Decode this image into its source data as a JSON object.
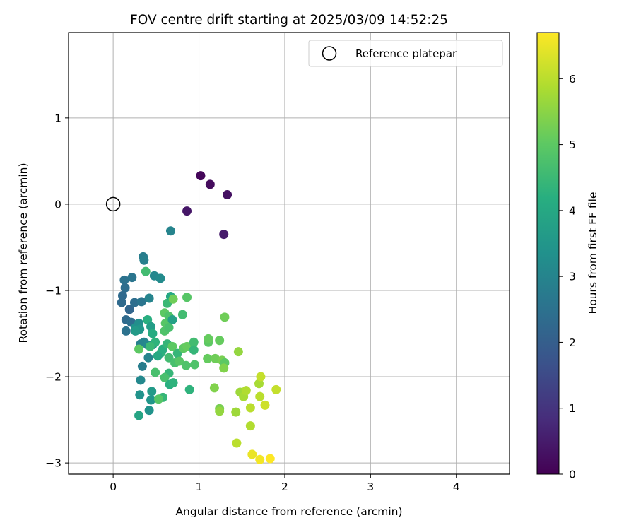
{
  "chart_data": {
    "type": "scatter",
    "title": "FOV centre drift starting at 2025/03/09 14:52:25",
    "xlabel": "Angular distance from reference (arcmin)",
    "ylabel": "Rotation from reference (arcmin)",
    "xlim": [
      -0.52,
      4.62
    ],
    "ylim": [
      -3.13,
      1.99
    ],
    "xticks": [
      0,
      1,
      2,
      3,
      4
    ],
    "yticks": [
      -3,
      -2,
      -1,
      0,
      1
    ],
    "grid": true,
    "legend": {
      "position": "upper-right",
      "entries": [
        "Reference platepar"
      ]
    },
    "reference_point": {
      "label": "Reference platepar",
      "x": 0,
      "y": 0,
      "marker": "open-circle",
      "color": "#000000"
    },
    "colorbar": {
      "label": "Hours from first FF file",
      "min": 0,
      "max": 6.7,
      "ticks": [
        0,
        1,
        2,
        3,
        4,
        5,
        6
      ],
      "colormap": "viridis"
    },
    "series": [
      {
        "values": [
          {
            "x": 1.02,
            "y": 0.33,
            "c": 0.1
          },
          {
            "x": 1.13,
            "y": 0.23,
            "c": 0.2
          },
          {
            "x": 1.33,
            "y": 0.11,
            "c": 0.3
          },
          {
            "x": 0.86,
            "y": -0.08,
            "c": 0.4
          },
          {
            "x": 1.29,
            "y": -0.35,
            "c": 0.5
          },
          {
            "x": 0.67,
            "y": -0.31,
            "c": 3.0
          },
          {
            "x": 0.35,
            "y": -0.61,
            "c": 2.8
          },
          {
            "x": 0.36,
            "y": -0.65,
            "c": 2.9
          },
          {
            "x": 0.13,
            "y": -0.88,
            "c": 2.5
          },
          {
            "x": 0.22,
            "y": -0.85,
            "c": 2.6
          },
          {
            "x": 0.14,
            "y": -0.97,
            "c": 2.4
          },
          {
            "x": 0.11,
            "y": -1.06,
            "c": 2.3
          },
          {
            "x": 0.1,
            "y": -1.14,
            "c": 2.3
          },
          {
            "x": 0.19,
            "y": -1.22,
            "c": 2.2
          },
          {
            "x": 0.25,
            "y": -1.14,
            "c": 2.4
          },
          {
            "x": 0.33,
            "y": -1.13,
            "c": 2.6
          },
          {
            "x": 0.42,
            "y": -1.09,
            "c": 3.0
          },
          {
            "x": 0.48,
            "y": -0.83,
            "c": 3.1
          },
          {
            "x": 0.55,
            "y": -0.86,
            "c": 3.2
          },
          {
            "x": 0.38,
            "y": -0.78,
            "c": 4.6
          },
          {
            "x": 0.15,
            "y": -1.34,
            "c": 2.3
          },
          {
            "x": 0.21,
            "y": -1.37,
            "c": 2.4
          },
          {
            "x": 0.15,
            "y": -1.47,
            "c": 2.5
          },
          {
            "x": 0.26,
            "y": -1.43,
            "c": 3.4
          },
          {
            "x": 0.3,
            "y": -1.38,
            "c": 3.3
          },
          {
            "x": 0.31,
            "y": -1.45,
            "c": 3.5
          },
          {
            "x": 0.26,
            "y": -1.47,
            "c": 3.6
          },
          {
            "x": 0.32,
            "y": -1.62,
            "c": 2.9
          },
          {
            "x": 0.36,
            "y": -1.6,
            "c": 3.0
          },
          {
            "x": 0.4,
            "y": -1.63,
            "c": 3.1
          },
          {
            "x": 0.46,
            "y": -1.63,
            "c": 3.3
          },
          {
            "x": 0.41,
            "y": -1.78,
            "c": 3.0
          },
          {
            "x": 0.34,
            "y": -1.88,
            "c": 2.8
          },
          {
            "x": 0.32,
            "y": -2.04,
            "c": 3.1
          },
          {
            "x": 0.31,
            "y": -2.21,
            "c": 3.4
          },
          {
            "x": 0.45,
            "y": -2.17,
            "c": 3.6
          },
          {
            "x": 0.44,
            "y": -2.27,
            "c": 3.5
          },
          {
            "x": 0.42,
            "y": -2.39,
            "c": 3.4
          },
          {
            "x": 0.3,
            "y": -2.45,
            "c": 3.9
          },
          {
            "x": 0.4,
            "y": -1.34,
            "c": 4.2
          },
          {
            "x": 0.44,
            "y": -1.42,
            "c": 3.7
          },
          {
            "x": 0.46,
            "y": -1.5,
            "c": 4.1
          },
          {
            "x": 0.49,
            "y": -1.6,
            "c": 4.3
          },
          {
            "x": 0.56,
            "y": -1.72,
            "c": 4.3
          },
          {
            "x": 0.52,
            "y": -1.76,
            "c": 4.0
          },
          {
            "x": 0.58,
            "y": -1.68,
            "c": 4.2
          },
          {
            "x": 0.63,
            "y": -1.62,
            "c": 4.4
          },
          {
            "x": 0.6,
            "y": -1.47,
            "c": 4.8
          },
          {
            "x": 0.61,
            "y": -1.38,
            "c": 4.9
          },
          {
            "x": 0.63,
            "y": -1.15,
            "c": 4.5
          },
          {
            "x": 0.67,
            "y": -1.07,
            "c": 4.0
          },
          {
            "x": 0.7,
            "y": -1.1,
            "c": 5.2
          },
          {
            "x": 0.6,
            "y": -1.26,
            "c": 5.0
          },
          {
            "x": 0.65,
            "y": -1.3,
            "c": 4.8
          },
          {
            "x": 0.69,
            "y": -1.34,
            "c": 3.8
          },
          {
            "x": 0.65,
            "y": -1.43,
            "c": 4.7
          },
          {
            "x": 0.81,
            "y": -1.28,
            "c": 4.6
          },
          {
            "x": 0.86,
            "y": -1.08,
            "c": 4.9
          },
          {
            "x": 0.69,
            "y": -1.65,
            "c": 5.0
          },
          {
            "x": 0.75,
            "y": -1.73,
            "c": 4.4
          },
          {
            "x": 0.65,
            "y": -1.78,
            "c": 4.6
          },
          {
            "x": 0.72,
            "y": -1.84,
            "c": 4.7
          },
          {
            "x": 0.77,
            "y": -1.82,
            "c": 4.9
          },
          {
            "x": 0.82,
            "y": -1.67,
            "c": 5.0
          },
          {
            "x": 0.86,
            "y": -1.65,
            "c": 5.1
          },
          {
            "x": 0.85,
            "y": -1.87,
            "c": 4.8
          },
          {
            "x": 0.65,
            "y": -1.96,
            "c": 4.4
          },
          {
            "x": 0.6,
            "y": -2.01,
            "c": 4.7
          },
          {
            "x": 0.66,
            "y": -2.09,
            "c": 4.2
          },
          {
            "x": 0.7,
            "y": -2.07,
            "c": 4.3
          },
          {
            "x": 0.58,
            "y": -2.24,
            "c": 4.4
          },
          {
            "x": 0.53,
            "y": -2.26,
            "c": 4.9
          },
          {
            "x": 0.49,
            "y": -1.95,
            "c": 4.7
          },
          {
            "x": 0.43,
            "y": -1.65,
            "c": 4.5
          },
          {
            "x": 0.3,
            "y": -1.68,
            "c": 5.0
          },
          {
            "x": 0.94,
            "y": -1.6,
            "c": 4.6
          },
          {
            "x": 0.94,
            "y": -1.69,
            "c": 4.4
          },
          {
            "x": 0.95,
            "y": -1.86,
            "c": 4.8
          },
          {
            "x": 0.89,
            "y": -2.15,
            "c": 4.3
          },
          {
            "x": 1.1,
            "y": -1.79,
            "c": 5.1
          },
          {
            "x": 1.11,
            "y": -1.6,
            "c": 5.0
          },
          {
            "x": 1.11,
            "y": -1.56,
            "c": 5.1
          },
          {
            "x": 1.24,
            "y": -1.58,
            "c": 5.1
          },
          {
            "x": 1.19,
            "y": -1.79,
            "c": 5.2
          },
          {
            "x": 1.27,
            "y": -1.81,
            "c": 5.3
          },
          {
            "x": 1.3,
            "y": -1.84,
            "c": 5.0
          },
          {
            "x": 1.29,
            "y": -1.9,
            "c": 5.4
          },
          {
            "x": 1.3,
            "y": -1.31,
            "c": 5.2
          },
          {
            "x": 1.18,
            "y": -2.13,
            "c": 5.4
          },
          {
            "x": 1.24,
            "y": -2.37,
            "c": 5.3
          },
          {
            "x": 1.24,
            "y": -2.4,
            "c": 5.6
          },
          {
            "x": 1.43,
            "y": -2.41,
            "c": 5.7
          },
          {
            "x": 1.46,
            "y": -1.71,
            "c": 5.6
          },
          {
            "x": 1.48,
            "y": -2.18,
            "c": 5.7
          },
          {
            "x": 1.52,
            "y": -2.23,
            "c": 5.8
          },
          {
            "x": 1.55,
            "y": -2.16,
            "c": 5.9
          },
          {
            "x": 1.6,
            "y": -2.36,
            "c": 6.0
          },
          {
            "x": 1.6,
            "y": -2.57,
            "c": 5.9
          },
          {
            "x": 1.44,
            "y": -2.77,
            "c": 6.0
          },
          {
            "x": 1.7,
            "y": -2.08,
            "c": 5.8
          },
          {
            "x": 1.72,
            "y": -2.0,
            "c": 6.1
          },
          {
            "x": 1.71,
            "y": -2.23,
            "c": 6.0
          },
          {
            "x": 1.77,
            "y": -2.33,
            "c": 6.2
          },
          {
            "x": 1.9,
            "y": -2.15,
            "c": 6.1
          },
          {
            "x": 1.62,
            "y": -2.9,
            "c": 6.5
          },
          {
            "x": 1.71,
            "y": -2.96,
            "c": 6.6
          },
          {
            "x": 1.83,
            "y": -2.95,
            "c": 6.7
          }
        ]
      }
    ]
  }
}
